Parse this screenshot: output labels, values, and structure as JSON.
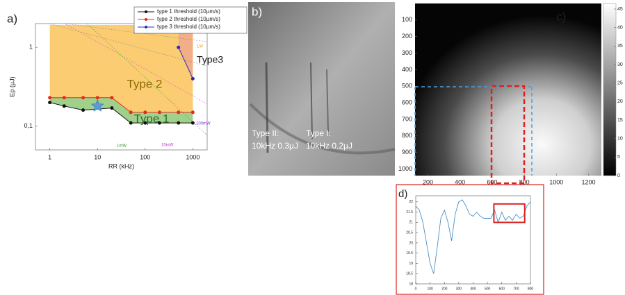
{
  "chart_data": [
    {
      "type": "line",
      "panel_label": "a)",
      "xlabel": "RR (kHz)",
      "ylabel": "Ep (µJ)",
      "xscale": "log",
      "yscale": "log",
      "xlim": [
        0.5,
        2000
      ],
      "ylim": [
        0.05,
        2
      ],
      "xticks": [
        1,
        10,
        100,
        1000
      ],
      "yticks": [
        1,
        {
          "value": 0.1,
          "label": "0,1"
        }
      ],
      "series": [
        {
          "name": "type 1 threshold  (10µm/s)",
          "color": "#111111",
          "x": [
            1,
            2,
            5,
            20,
            50,
            100,
            200,
            500,
            1000
          ],
          "values": [
            0.2,
            0.18,
            0.16,
            0.17,
            0.11,
            0.11,
            0.11,
            0.11,
            0.11
          ]
        },
        {
          "name": "type 2 threshold  (10µm/s)",
          "color": "#e8291c",
          "x": [
            1,
            2,
            5,
            10,
            20,
            50,
            100,
            200,
            500,
            1000
          ],
          "values": [
            0.23,
            0.23,
            0.23,
            0.23,
            0.23,
            0.15,
            0.15,
            0.15,
            0.15,
            0.15
          ]
        },
        {
          "name": "type 3 threshold  (10µm/s)",
          "color": "#2b2bb8",
          "x": [
            500,
            1000
          ],
          "values": [
            1,
            0.4
          ]
        }
      ],
      "marker": {
        "x": 10,
        "value": 0.18
      },
      "annotations": [
        "Type 2",
        "Type 1",
        "Type3",
        "1W",
        "100mW",
        "10mW",
        "1mW"
      ]
    },
    {
      "type": "heatmap",
      "panel_label": "c)",
      "xlim": [
        120,
        1280
      ],
      "ylim": [
        0,
        1040
      ],
      "clim": [
        0,
        46.5
      ],
      "xticks": [
        200,
        400,
        600,
        800,
        1000,
        1200
      ],
      "yticks": [
        100,
        200,
        300,
        400,
        500,
        600,
        700,
        800,
        900,
        1000
      ],
      "cticks": [
        0,
        5,
        10,
        15,
        20,
        25,
        30,
        35,
        40,
        45
      ]
    },
    {
      "type": "line",
      "panel_label": "d)",
      "xlim": [
        0,
        800
      ],
      "ylim": [
        18,
        22.3
      ],
      "xticks": [
        0,
        100,
        200,
        300,
        400,
        500,
        600,
        700,
        800
      ],
      "yticks": [
        18,
        18.5,
        19,
        19.5,
        20,
        20.5,
        21,
        21.5,
        22
      ],
      "series": [
        {
          "color": "#4a8fc4",
          "x": [
            0,
            25,
            50,
            75,
            100,
            125,
            150,
            175,
            200,
            225,
            250,
            275,
            300,
            325,
            350,
            375,
            400,
            425,
            450,
            475,
            500,
            525,
            550,
            575,
            600,
            625,
            650,
            675,
            700,
            725,
            750,
            775,
            800
          ],
          "values": [
            21.8,
            21.6,
            21.0,
            20.0,
            19.0,
            18.5,
            19.8,
            21.2,
            21.6,
            21.0,
            20.1,
            21.4,
            22.0,
            22.1,
            21.8,
            21.4,
            21.3,
            21.5,
            21.3,
            21.2,
            21.2,
            21.2,
            21.6,
            21.0,
            21.5,
            21.1,
            21.3,
            21.1,
            21.4,
            21.2,
            21.3,
            21.8,
            22.0
          ]
        }
      ]
    }
  ],
  "panel_b": {
    "panel_label": "b)",
    "texts": [
      "Type II:",
      "10kHz 0.3µJ",
      "Type I:",
      "10kHz 0.2µJ"
    ]
  }
}
